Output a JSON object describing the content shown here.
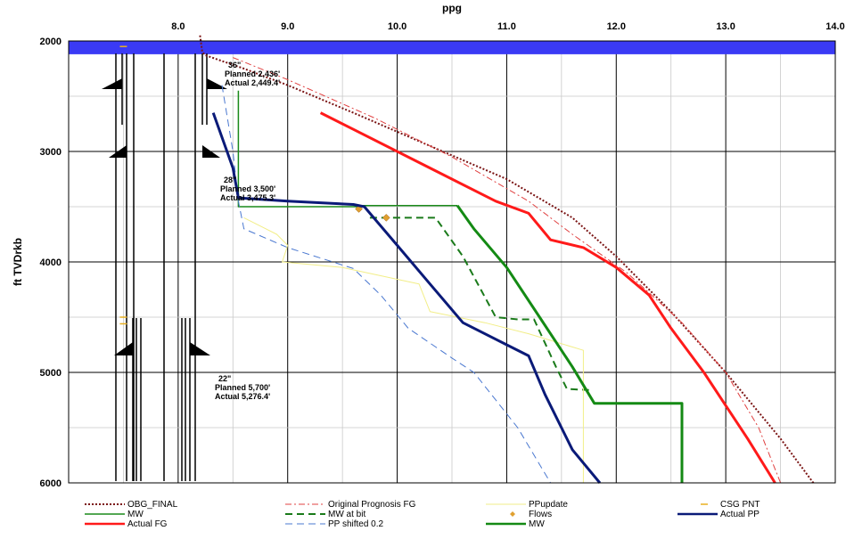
{
  "chart_data": {
    "type": "line",
    "title": "",
    "xlabel": "ppg",
    "ylabel": "ft TVDrkb",
    "xlim": [
      7.0,
      14.0
    ],
    "ylim": [
      2000,
      6000
    ],
    "y_inverted": true,
    "x_axis_position": "top",
    "grid": true,
    "x_ticks": [
      {
        "value": 8.0,
        "label": "8.0"
      },
      {
        "value": 9.0,
        "label": "9.0"
      },
      {
        "value": 10.0,
        "label": "10.0"
      },
      {
        "value": 11.0,
        "label": "11.0"
      },
      {
        "value": 12.0,
        "label": "12.0"
      },
      {
        "value": 13.0,
        "label": "13.0"
      },
      {
        "value": 14.0,
        "label": "14.0"
      }
    ],
    "y_ticks": [
      {
        "value": 2000,
        "label": "2000"
      },
      {
        "value": 3000,
        "label": "3000"
      },
      {
        "value": 4000,
        "label": "4000"
      },
      {
        "value": 5000,
        "label": "5000"
      },
      {
        "value": 6000,
        "label": "6000"
      }
    ],
    "water_band": {
      "top": 2000,
      "bottom": 2120,
      "color": "#3a3af5"
    },
    "casing_points": [
      {
        "size": "36\"",
        "planned": "Planned 2,436'",
        "actual": "Actual 2,449.4'",
        "depth": 2436
      },
      {
        "size": "28\"",
        "planned": "Planned 3,500'",
        "actual": "Actual 3,475.3'",
        "depth": 3475
      },
      {
        "size": "22\"",
        "planned": "Planned 5,700'",
        "actual": "Actual 5,276.4'",
        "depth": 5276
      }
    ],
    "series": [
      {
        "name": "OBG_FINAL",
        "color": "#7b1515",
        "style": "dotted",
        "width": 2,
        "points": [
          [
            8.2,
            1950
          ],
          [
            8.22,
            2100
          ],
          [
            8.25,
            2130
          ],
          [
            8.6,
            2250
          ],
          [
            9.0,
            2400
          ],
          [
            9.6,
            2650
          ],
          [
            10.3,
            2950
          ],
          [
            11.0,
            3250
          ],
          [
            11.6,
            3600
          ],
          [
            12.0,
            3950
          ],
          [
            12.5,
            4450
          ],
          [
            13.0,
            5000
          ],
          [
            13.5,
            5600
          ],
          [
            13.8,
            6000
          ]
        ]
      },
      {
        "name": "Original Prognosis FG",
        "color": "#e04040",
        "style": "dashdot",
        "width": 1,
        "points": [
          [
            8.5,
            2150
          ],
          [
            9.0,
            2350
          ],
          [
            9.8,
            2700
          ],
          [
            10.5,
            3050
          ],
          [
            11.2,
            3450
          ],
          [
            11.6,
            3750
          ],
          [
            12.1,
            4100
          ],
          [
            12.6,
            4550
          ],
          [
            13.0,
            5000
          ],
          [
            13.3,
            5500
          ],
          [
            13.5,
            6000
          ]
        ]
      },
      {
        "name": "MW",
        "color": "#1a8a1a",
        "style": "solid",
        "width": 1.5,
        "points": [
          [
            8.55,
            2450
          ],
          [
            8.55,
            3500
          ],
          [
            9.65,
            3500
          ],
          [
            9.65,
            3490
          ],
          [
            10.55,
            3490
          ]
        ]
      },
      {
        "name": "MW at bit",
        "color": "#1a7a1a",
        "style": "dashed",
        "width": 2,
        "points": [
          [
            9.75,
            3600
          ],
          [
            10.35,
            3600
          ],
          [
            10.6,
            3950
          ],
          [
            10.9,
            4500
          ],
          [
            11.1,
            4520
          ],
          [
            11.25,
            4520
          ],
          [
            11.45,
            4950
          ],
          [
            11.55,
            5150
          ],
          [
            11.75,
            5160
          ]
        ]
      },
      {
        "name": "Actual FG",
        "color": "#ff1a1a",
        "style": "solid",
        "width": 3,
        "points": [
          [
            9.3,
            2650
          ],
          [
            9.6,
            2800
          ],
          [
            10.3,
            3150
          ],
          [
            10.9,
            3450
          ],
          [
            11.2,
            3560
          ],
          [
            11.4,
            3800
          ],
          [
            11.7,
            3870
          ],
          [
            12.0,
            4050
          ],
          [
            12.3,
            4300
          ],
          [
            12.5,
            4600
          ],
          [
            12.8,
            5000
          ],
          [
            13.0,
            5300
          ],
          [
            13.2,
            5600
          ],
          [
            13.45,
            6000
          ]
        ]
      },
      {
        "name": "PP shifted 0.2",
        "color": "#4a78d0",
        "style": "dashed",
        "width": 1,
        "points": [
          [
            8.4,
            2400
          ],
          [
            8.5,
            3000
          ],
          [
            8.55,
            3450
          ],
          [
            8.6,
            3700
          ],
          [
            9.0,
            3870
          ],
          [
            9.6,
            4060
          ],
          [
            9.85,
            4300
          ],
          [
            10.1,
            4600
          ],
          [
            10.5,
            4870
          ],
          [
            10.7,
            5000
          ],
          [
            11.1,
            5500
          ],
          [
            11.4,
            6000
          ]
        ]
      },
      {
        "name": "PPupdate",
        "color": "#f2ee88",
        "style": "solid",
        "width": 1,
        "points": [
          [
            8.6,
            3600
          ],
          [
            8.9,
            3750
          ],
          [
            9.0,
            3850
          ],
          [
            8.95,
            4000
          ],
          [
            9.5,
            4050
          ],
          [
            10.2,
            4200
          ],
          [
            10.3,
            4450
          ],
          [
            10.8,
            4550
          ],
          [
            11.2,
            4650
          ],
          [
            11.7,
            4800
          ],
          [
            11.7,
            6000
          ]
        ]
      },
      {
        "name": "Flows",
        "color": "#e0a030",
        "style": "marker",
        "width": 1,
        "points": [
          [
            9.65,
            3520
          ],
          [
            9.9,
            3600
          ]
        ]
      },
      {
        "name": "Actual PP",
        "color": "#0a1a78",
        "style": "solid",
        "width": 3,
        "points": [
          [
            8.32,
            2650
          ],
          [
            8.5,
            3150
          ],
          [
            8.55,
            3420
          ],
          [
            9.0,
            3450
          ],
          [
            9.6,
            3480
          ],
          [
            9.7,
            3500
          ],
          [
            10.0,
            3850
          ],
          [
            10.3,
            4200
          ],
          [
            10.6,
            4550
          ],
          [
            11.0,
            4750
          ],
          [
            11.2,
            4850
          ],
          [
            11.35,
            5200
          ],
          [
            11.6,
            5700
          ],
          [
            11.85,
            6000
          ]
        ]
      },
      {
        "name": "MW",
        "color": "#148a14",
        "style": "solid",
        "width": 3,
        "points": [
          [
            10.55,
            3490
          ],
          [
            10.7,
            3700
          ],
          [
            11.0,
            4050
          ],
          [
            11.3,
            4500
          ],
          [
            11.6,
            4950
          ],
          [
            11.8,
            5280
          ],
          [
            12.6,
            5280
          ],
          [
            12.6,
            6000
          ]
        ]
      },
      {
        "name": "CSG PNT",
        "color": "#e8b020",
        "style": "marker",
        "width": 1,
        "points": [
          [
            7.5,
            2050
          ],
          [
            7.5,
            4500
          ],
          [
            7.5,
            4560
          ]
        ]
      }
    ],
    "legend": [
      {
        "label": "OBG_FINAL",
        "series": 0
      },
      {
        "label": "Original Prognosis FG",
        "series": 1
      },
      {
        "label": "PPupdate",
        "series": 6
      },
      {
        "label": "CSG PNT",
        "series": 10
      },
      {
        "label": "MW",
        "series": 2
      },
      {
        "label": "MW at bit",
        "series": 3
      },
      {
        "label": "Flows",
        "series": 7
      },
      {
        "label": "Actual PP",
        "series": 8
      },
      {
        "label": "Actual FG",
        "series": 4
      },
      {
        "label": "PP shifted 0.2",
        "series": 5
      },
      {
        "label": "MW",
        "series": 9
      }
    ]
  }
}
